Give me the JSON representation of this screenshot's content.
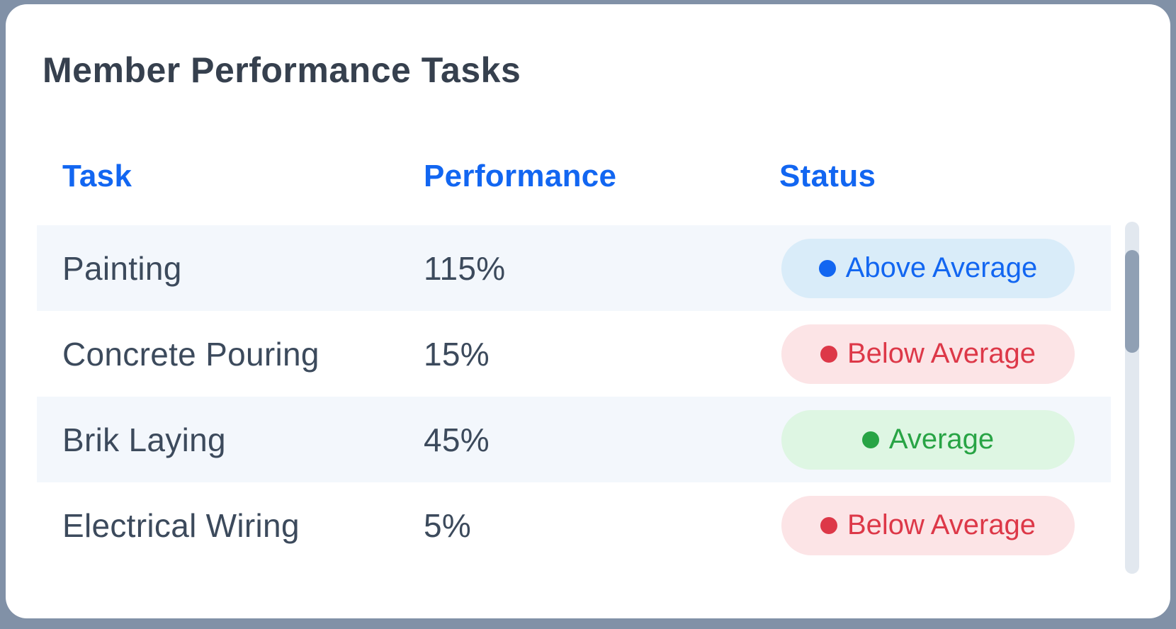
{
  "card": {
    "title": "Member Performance Tasks"
  },
  "table": {
    "columns": [
      {
        "label": "Task"
      },
      {
        "label": "Performance"
      },
      {
        "label": "Status"
      }
    ],
    "rows": [
      {
        "task": "Painting",
        "performance": "115%",
        "status": {
          "label": "Above Average",
          "type": "above"
        }
      },
      {
        "task": "Concrete Pouring",
        "performance": "15%",
        "status": {
          "label": "Below Average",
          "type": "below"
        }
      },
      {
        "task": "Brik Laying",
        "performance": "45%",
        "status": {
          "label": "Average",
          "type": "average"
        }
      },
      {
        "task": "Electrical Wiring",
        "performance": "5%",
        "status": {
          "label": "Below Average",
          "type": "below"
        }
      }
    ]
  },
  "icons": {
    "status_dot": "circle-dot-icon"
  },
  "colors": {
    "page_background": "#8191a7",
    "card_background": "#ffffff",
    "title_text": "#36404e",
    "header_accent": "#1266f1",
    "row_text": "#3c4a5c",
    "row_stripe": "#f3f7fc",
    "status_above": {
      "text": "#1266f1",
      "bg": "#d9ecf9"
    },
    "status_below": {
      "text": "#dd3848",
      "bg": "#fce4e6"
    },
    "status_average": {
      "text": "#28a445",
      "bg": "#def6e3"
    },
    "scrollbar_track": "#e2e8ef",
    "scrollbar_thumb": "#90a0b4"
  }
}
